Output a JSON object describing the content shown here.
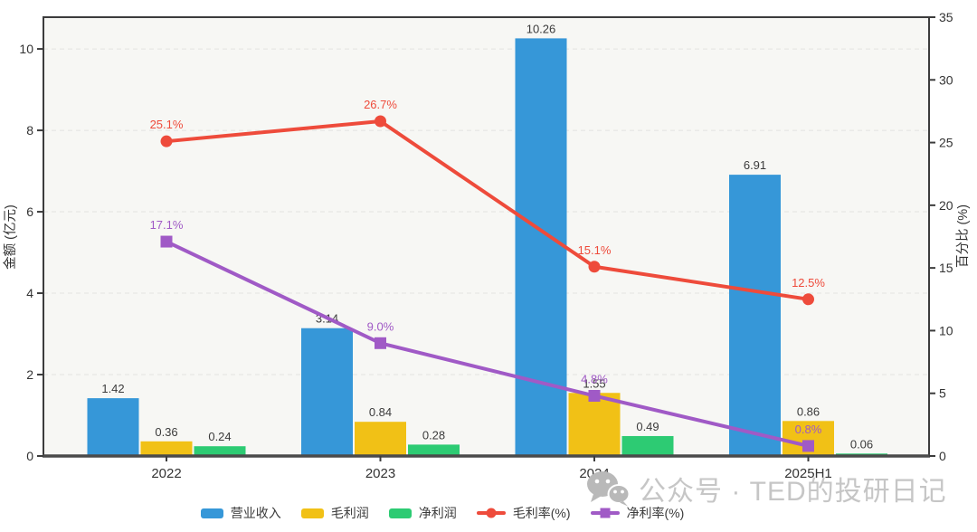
{
  "watermark": {
    "text": "公众号 · TED的投研日记",
    "icon": "wechat-icon",
    "color": "#c6c6c6"
  },
  "chart_data": {
    "type": "bar",
    "subtype": "grouped-bar-with-lines",
    "categories": [
      "2022",
      "2023",
      "2024",
      "2025H1"
    ],
    "bar_series": [
      {
        "name": "营业收入",
        "color": "#3697d8",
        "values": [
          1.42,
          3.14,
          10.26,
          6.91
        ],
        "labels": [
          "1.42",
          "3.14",
          "10.26",
          "6.91"
        ]
      },
      {
        "name": "毛利润",
        "color": "#f1c116",
        "values": [
          0.36,
          0.84,
          1.55,
          0.86
        ],
        "labels": [
          "0.36",
          "0.84",
          "1.55",
          "0.86"
        ]
      },
      {
        "name": "净利润",
        "color": "#2dcb73",
        "values": [
          0.24,
          0.28,
          0.49,
          0.06
        ],
        "labels": [
          "0.24",
          "0.28",
          "0.49",
          "0.06"
        ]
      }
    ],
    "line_series": [
      {
        "name": "毛利率(%)",
        "color": "#ee4b3b",
        "marker": "circle",
        "values": [
          25.1,
          26.7,
          15.1,
          12.5
        ],
        "labels": [
          "25.1%",
          "26.7%",
          "15.1%",
          "12.5%"
        ]
      },
      {
        "name": "净利率(%)",
        "color": "#a05ac6",
        "marker": "square",
        "values": [
          17.1,
          9.0,
          4.8,
          0.8
        ],
        "labels": [
          "17.1%",
          "9.0%",
          "4.8%",
          "0.8%"
        ]
      }
    ],
    "left_axis": {
      "label": "金额 (亿元)",
      "ticks": [
        0,
        2,
        4,
        6,
        8,
        10
      ],
      "max": 10.78
    },
    "right_axis": {
      "label": "百分比 (%)",
      "ticks": [
        0,
        5,
        10,
        15,
        20,
        25,
        30,
        35
      ],
      "max": 35
    },
    "grid": true,
    "legend_position": "bottom",
    "colors": {
      "plot_bg": "#f7f7f4",
      "grid": "#e3e3e0",
      "spine": "#3c3c3c",
      "tick_text": "#333333",
      "bar_label_text": "#3b3b3b"
    }
  }
}
